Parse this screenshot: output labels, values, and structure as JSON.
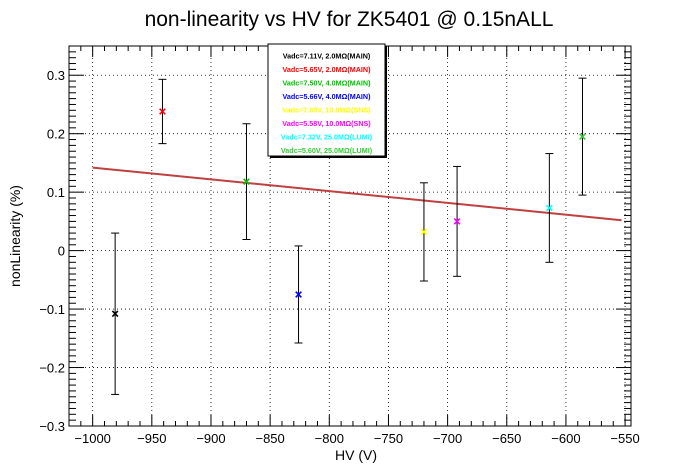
{
  "chart_data": {
    "type": "scatter",
    "title": "non-linearity vs HV for ZK5401 @ 0.15nALL",
    "xlabel": "HV (V)",
    "ylabel": "nonLinearity (%)",
    "xlim": [
      -1020,
      -545
    ],
    "ylim": [
      -0.3,
      0.35
    ],
    "xticks": [
      -1000,
      -950,
      -900,
      -850,
      -800,
      -750,
      -700,
      -650,
      -600,
      -550
    ],
    "xtick_labels": [
      "−1000",
      "−950",
      "−900",
      "−850",
      "−800",
      "−750",
      "−700",
      "−650",
      "−600",
      "−550"
    ],
    "yticks": [
      -0.3,
      -0.2,
      -0.1,
      0,
      0.1,
      0.2,
      0.3
    ],
    "ytick_labels": [
      "−0.3",
      "−0.2",
      "−0.1",
      "0",
      "0.1",
      "0.2",
      "0.3"
    ],
    "grid": true,
    "legend_position": "top-center",
    "series": [
      {
        "name": "Vadc=7.11V, 2.0MΩ(MAIN)",
        "color": "#000000",
        "points": [
          {
            "x": -981,
            "y": -0.108,
            "err": 0.138
          }
        ]
      },
      {
        "name": "Vadc=5.65V, 2.0MΩ(MAIN)",
        "color": "#ff0000",
        "points": [
          {
            "x": -941,
            "y": 0.238,
            "err": 0.055
          }
        ]
      },
      {
        "name": "Vadc=7.50V, 4.0MΩ(MAIN)",
        "color": "#00c000",
        "points": [
          {
            "x": -870,
            "y": 0.118,
            "err": 0.099
          }
        ]
      },
      {
        "name": "Vadc=5.66V, 4.0MΩ(MAIN)",
        "color": "#0000ff",
        "points": [
          {
            "x": -826,
            "y": -0.075,
            "err": 0.083
          }
        ]
      },
      {
        "name": "Vadc=7.60V, 10.0MΩ(SNS)",
        "color": "#ffff00",
        "points": [
          {
            "x": -720,
            "y": 0.032,
            "err": 0.084
          }
        ]
      },
      {
        "name": "Vadc=5.58V, 10.0MΩ(SNS)",
        "color": "#ff00ff",
        "points": [
          {
            "x": -692,
            "y": 0.05,
            "err": 0.094
          }
        ]
      },
      {
        "name": "Vadc=7.32V, 25.0MΩ(LUMI)",
        "color": "#00ffff",
        "points": [
          {
            "x": -614,
            "y": 0.073,
            "err": 0.093
          }
        ]
      },
      {
        "name": "Vadc=5.60V, 25.0MΩ(LUMI)",
        "color": "#33cc33",
        "points": [
          {
            "x": -586,
            "y": 0.195,
            "err": 0.1
          }
        ]
      }
    ],
    "fit_line": {
      "color": "#c04040",
      "points": [
        {
          "x": -1000,
          "y": 0.142
        },
        {
          "x": -553,
          "y": 0.052
        }
      ]
    }
  }
}
